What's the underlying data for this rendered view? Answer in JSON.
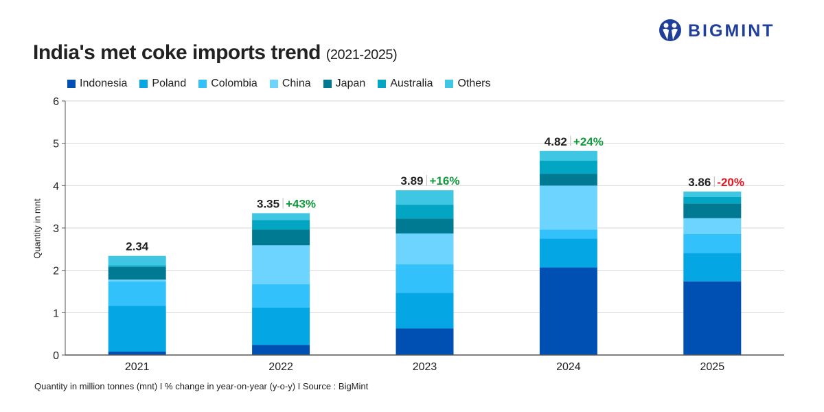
{
  "title": "India's met coke imports trend",
  "subtitle": "(2021-2025)",
  "logo": {
    "text": "BIGMINT",
    "color": "#1f3f9a"
  },
  "footer": "Quantity in million tonnes (mnt)  I  % change in year-on-year (y-o-y)  I  Source : BigMint",
  "chart_data": {
    "type": "bar",
    "stacked": true,
    "ylabel": "Quantity in mnt",
    "ylim": [
      0,
      6
    ],
    "yticks": [
      0,
      1,
      2,
      3,
      4,
      5,
      6
    ],
    "grid": true,
    "legend_position": "top-left",
    "categories": [
      "2021",
      "2022",
      "2023",
      "2024",
      "2025"
    ],
    "series": [
      {
        "name": "Indonesia",
        "color": "#0050b3",
        "values": [
          0.08,
          0.24,
          0.63,
          2.07,
          1.74
        ]
      },
      {
        "name": "Poland",
        "color": "#05a6e4",
        "values": [
          1.08,
          0.88,
          0.84,
          0.68,
          0.67
        ]
      },
      {
        "name": "Colombia",
        "color": "#33c1fb",
        "values": [
          0.58,
          0.55,
          0.67,
          0.21,
          0.45
        ]
      },
      {
        "name": "China",
        "color": "#6dd4ff",
        "values": [
          0.04,
          0.92,
          0.73,
          1.04,
          0.37
        ]
      },
      {
        "name": "Japan",
        "color": "#007a92",
        "values": [
          0.3,
          0.37,
          0.35,
          0.28,
          0.35
        ]
      },
      {
        "name": "Australia",
        "color": "#02a6c3",
        "values": [
          0.04,
          0.23,
          0.33,
          0.31,
          0.15
        ]
      },
      {
        "name": "Others",
        "color": "#3ec6e2",
        "values": [
          0.22,
          0.16,
          0.34,
          0.23,
          0.13
        ]
      }
    ],
    "totals": [
      "2.34",
      "3.35",
      "3.89",
      "4.82",
      "3.86"
    ],
    "yoy_change": [
      "",
      "+43%",
      "+16%",
      "+24%",
      "-20%"
    ],
    "positive_color": "#109a3c",
    "negative_color": "#e8141e"
  }
}
